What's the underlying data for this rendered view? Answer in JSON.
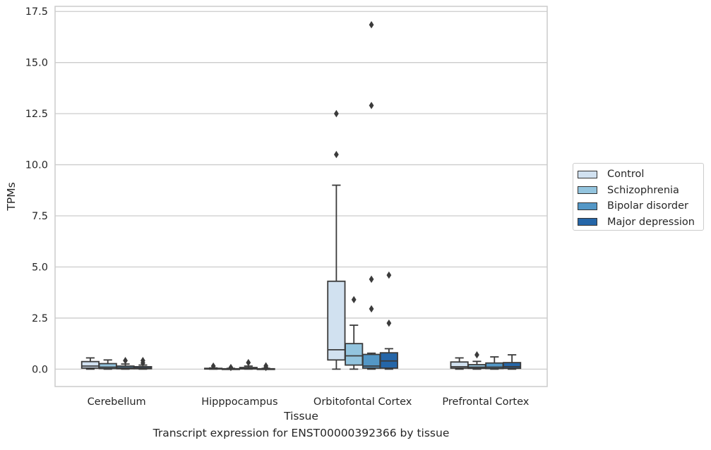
{
  "caption": "Transcript expression for ENST00000392366 by tissue",
  "chart_data": {
    "type": "box",
    "xlabel": "Tissue",
    "ylabel": "TPMs",
    "ylim": [
      -0.85,
      17.75
    ],
    "yticks": [
      0.0,
      2.5,
      5.0,
      7.5,
      10.0,
      12.5,
      15.0,
      17.5
    ],
    "ytick_labels": [
      "0.0",
      "2.5",
      "5.0",
      "7.5",
      "10.0",
      "12.5",
      "15.0",
      "17.5"
    ],
    "grid": "horizontal",
    "legend_position": "right",
    "categories": [
      "Cerebellum",
      "Hipppocampus",
      "Orbitofontal Cortex",
      "Prefrontal Cortex"
    ],
    "series": [
      {
        "name": "Control",
        "color": "#d1e1f0",
        "boxes": [
          {
            "whislo": 0.0,
            "q1": 0.05,
            "med": 0.15,
            "q3": 0.37,
            "whishi": 0.55,
            "fliers": []
          },
          {
            "whislo": 0.0,
            "q1": 0.01,
            "med": 0.02,
            "q3": 0.04,
            "whishi": 0.06,
            "fliers": [
              0.15
            ]
          },
          {
            "whislo": 0.0,
            "q1": 0.45,
            "med": 0.95,
            "q3": 4.3,
            "whishi": 9.0,
            "fliers": [
              10.5,
              12.5
            ]
          },
          {
            "whislo": 0.0,
            "q1": 0.05,
            "med": 0.12,
            "q3": 0.35,
            "whishi": 0.55,
            "fliers": []
          }
        ]
      },
      {
        "name": "Schizophrenia",
        "color": "#93c4de",
        "boxes": [
          {
            "whislo": 0.0,
            "q1": 0.03,
            "med": 0.1,
            "q3": 0.27,
            "whishi": 0.45,
            "fliers": []
          },
          {
            "whislo": 0.0,
            "q1": 0.0,
            "med": 0.01,
            "q3": 0.02,
            "whishi": 0.04,
            "fliers": [
              0.08
            ]
          },
          {
            "whislo": 0.0,
            "q1": 0.2,
            "med": 0.65,
            "q3": 1.25,
            "whishi": 2.15,
            "fliers": [
              3.4
            ]
          },
          {
            "whislo": 0.0,
            "q1": 0.04,
            "med": 0.1,
            "q3": 0.22,
            "whishi": 0.38,
            "fliers": [
              0.7
            ]
          }
        ]
      },
      {
        "name": "Bipolar disorder",
        "color": "#5397c6",
        "boxes": [
          {
            "whislo": 0.0,
            "q1": 0.02,
            "med": 0.07,
            "q3": 0.15,
            "whishi": 0.25,
            "fliers": [
              0.42
            ]
          },
          {
            "whislo": 0.0,
            "q1": 0.01,
            "med": 0.03,
            "q3": 0.08,
            "whishi": 0.15,
            "fliers": [
              0.32
            ]
          },
          {
            "whislo": 0.0,
            "q1": 0.05,
            "med": 0.15,
            "q3": 0.72,
            "whishi": 0.78,
            "fliers": [
              2.95,
              4.4,
              12.9,
              16.85
            ]
          },
          {
            "whislo": 0.0,
            "q1": 0.03,
            "med": 0.1,
            "q3": 0.3,
            "whishi": 0.6,
            "fliers": []
          }
        ]
      },
      {
        "name": "Major depression",
        "color": "#2566a8",
        "boxes": [
          {
            "whislo": 0.0,
            "q1": 0.02,
            "med": 0.05,
            "q3": 0.12,
            "whishi": 0.2,
            "fliers": [
              0.3,
              0.42
            ]
          },
          {
            "whislo": 0.0,
            "q1": 0.0,
            "med": 0.01,
            "q3": 0.02,
            "whishi": 0.04,
            "fliers": [
              0.08,
              0.16
            ]
          },
          {
            "whislo": 0.0,
            "q1": 0.05,
            "med": 0.4,
            "q3": 0.8,
            "whishi": 1.0,
            "fliers": [
              2.25,
              4.6
            ]
          },
          {
            "whislo": 0.0,
            "q1": 0.04,
            "med": 0.12,
            "q3": 0.32,
            "whishi": 0.7,
            "fliers": []
          }
        ]
      }
    ]
  }
}
